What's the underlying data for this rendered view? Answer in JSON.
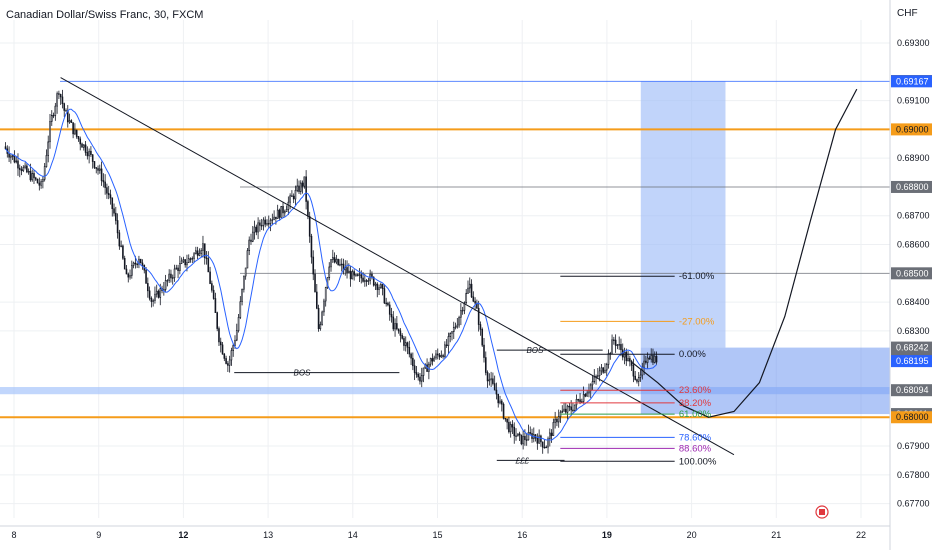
{
  "header": {
    "title": "Canadian Dollar/Swiss Franc, 30, FXCM",
    "currency": "CHF"
  },
  "colors": {
    "up": "#131722",
    "down": "#131722",
    "ma": "#2962ff",
    "orange": "#f59c1a",
    "zone": "#a6c4fb",
    "target_zone": "#9fbdf7",
    "grid": "#eef0f3",
    "tag_gray": "#6b6f77"
  },
  "chart_data": {
    "type": "candlestick",
    "symbol": "CAD/CHF",
    "timeframe": "30",
    "ylim": [
      0.6765,
      0.6938
    ],
    "y_ticks": [
      "0.69300",
      "0.69100",
      "0.68900",
      "0.68700",
      "0.68600",
      "0.68400",
      "0.68300",
      "0.67900",
      "0.67800",
      "0.67700"
    ],
    "x_ticks": [
      {
        "label": "8",
        "bold": false,
        "x": 0.0
      },
      {
        "label": "9",
        "bold": false,
        "x": 1.0
      },
      {
        "label": "12",
        "bold": true,
        "x": 2.0
      },
      {
        "label": "13",
        "bold": false,
        "x": 3.0
      },
      {
        "label": "14",
        "bold": false,
        "x": 4.0
      },
      {
        "label": "15",
        "bold": false,
        "x": 5.0
      },
      {
        "label": "16",
        "bold": false,
        "x": 6.0
      },
      {
        "label": "19",
        "bold": true,
        "x": 7.0
      },
      {
        "label": "20",
        "bold": false,
        "x": 8.0
      },
      {
        "label": "21",
        "bold": false,
        "x": 9.0
      },
      {
        "label": "22",
        "bold": false,
        "x": 10.0
      }
    ],
    "price_path": [
      [
        -0.1,
        0.6894
      ],
      [
        0.1,
        0.6887
      ],
      [
        0.25,
        0.6883
      ],
      [
        0.35,
        0.688
      ],
      [
        0.45,
        0.6902
      ],
      [
        0.55,
        0.6914
      ],
      [
        0.62,
        0.6906
      ],
      [
        0.75,
        0.6898
      ],
      [
        0.9,
        0.6892
      ],
      [
        1.05,
        0.6884
      ],
      [
        1.2,
        0.6871
      ],
      [
        1.35,
        0.6848
      ],
      [
        1.5,
        0.6856
      ],
      [
        1.65,
        0.684
      ],
      [
        1.8,
        0.6846
      ],
      [
        1.95,
        0.6852
      ],
      [
        2.1,
        0.6855
      ],
      [
        2.25,
        0.686
      ],
      [
        2.35,
        0.6845
      ],
      [
        2.45,
        0.6826
      ],
      [
        2.55,
        0.6818
      ],
      [
        2.65,
        0.683
      ],
      [
        2.8,
        0.6862
      ],
      [
        2.95,
        0.6868
      ],
      [
        3.1,
        0.687
      ],
      [
        3.2,
        0.6872
      ],
      [
        3.32,
        0.6877
      ],
      [
        3.45,
        0.6882
      ],
      [
        3.55,
        0.685
      ],
      [
        3.62,
        0.683
      ],
      [
        3.75,
        0.6855
      ],
      [
        3.9,
        0.6852
      ],
      [
        4.05,
        0.6848
      ],
      [
        4.2,
        0.6849
      ],
      [
        4.35,
        0.6845
      ],
      [
        4.5,
        0.6832
      ],
      [
        4.65,
        0.6825
      ],
      [
        4.8,
        0.6813
      ],
      [
        4.95,
        0.682
      ],
      [
        5.1,
        0.6823
      ],
      [
        5.25,
        0.6833
      ],
      [
        5.4,
        0.6846
      ],
      [
        5.5,
        0.6835
      ],
      [
        5.6,
        0.6815
      ],
      [
        5.72,
        0.6808
      ],
      [
        5.85,
        0.6797
      ],
      [
        6.0,
        0.6792
      ],
      [
        6.15,
        0.6794
      ],
      [
        6.3,
        0.679
      ],
      [
        6.45,
        0.6801
      ],
      [
        6.6,
        0.6803
      ],
      [
        6.75,
        0.6808
      ],
      [
        6.85,
        0.6812
      ],
      [
        7.0,
        0.6818
      ],
      [
        7.1,
        0.6827
      ],
      [
        7.2,
        0.6823
      ],
      [
        7.3,
        0.6818
      ],
      [
        7.4,
        0.6812
      ],
      [
        7.5,
        0.6822
      ],
      [
        7.6,
        0.682
      ]
    ],
    "horizontal_levels": [
      {
        "price": 0.69,
        "label": "0.69000",
        "color": "#f59c1a",
        "style": "solid"
      },
      {
        "price": 0.68,
        "label": "0.68000",
        "color": "#f59c1a",
        "style": "solid"
      },
      {
        "price": 0.688,
        "label": "0.68800",
        "color": "#6b6f77",
        "style": "thin"
      },
      {
        "price": 0.685,
        "label": "0.68500",
        "color": "#6b6f77",
        "style": "thin"
      },
      {
        "price": 0.69167,
        "label": "0.69167",
        "color": "#2962ff",
        "style": "thin"
      }
    ],
    "price_tags": [
      {
        "price": 0.69168,
        "label": "0.69168",
        "bg": "#6b6f77",
        "fg": "#ffffff"
      },
      {
        "price": 0.69167,
        "label": "0.69167",
        "bg": "#2962ff",
        "fg": "#ffffff"
      },
      {
        "price": 0.69,
        "label": "0.69000",
        "bg": "#f59c1a",
        "fg": "#131722"
      },
      {
        "price": 0.688,
        "label": "0.68800",
        "bg": "#6b6f77",
        "fg": "#ffffff"
      },
      {
        "price": 0.685,
        "label": "0.68500",
        "bg": "#6b6f77",
        "fg": "#ffffff"
      },
      {
        "price": 0.68242,
        "label": "0.68242",
        "sub": "08:48",
        "bg": "#6b6f77",
        "fg": "#ffffff"
      },
      {
        "price": 0.68195,
        "label": "0.68195",
        "bg": "#2962ff",
        "fg": "#ffffff"
      },
      {
        "price": 0.68094,
        "label": "0.68094",
        "bg": "#6b6f77",
        "fg": "#ffffff"
      },
      {
        "price": 0.68011,
        "label": "0.68011",
        "bg": "#6b6f77",
        "fg": "#ffffff"
      },
      {
        "price": 0.68,
        "label": "0.68000",
        "bg": "#f59c1a",
        "fg": "#131722"
      }
    ],
    "demand_zone": {
      "top": 0.68105,
      "bottom": 0.6808
    },
    "position": {
      "x_start": 7.4,
      "x_end": 8.4,
      "entry": 0.68242,
      "target": 0.69167,
      "stop": 0.68011
    },
    "trendline": {
      "x1": 0.55,
      "y1": 0.6918,
      "x2": 8.5,
      "y2": 0.6787
    },
    "fib_levels": [
      {
        "label": "-61.00%",
        "price": 0.6849,
        "color": "#131722"
      },
      {
        "label": "-27.00%",
        "price": 0.68333,
        "color": "#f59c1a"
      },
      {
        "label": "0.00%",
        "price": 0.68219,
        "color": "#131722"
      },
      {
        "label": "23.60%",
        "price": 0.68094,
        "color": "#e0383e"
      },
      {
        "label": "38.20%",
        "price": 0.6805,
        "color": "#e0383e"
      },
      {
        "label": "61.00%",
        "price": 0.68011,
        "color": "#2e9e47"
      },
      {
        "label": "78.60%",
        "price": 0.6793,
        "color": "#2962ff"
      },
      {
        "label": "88.60%",
        "price": 0.67892,
        "color": "#9c27b0"
      },
      {
        "label": "100.00%",
        "price": 0.67847,
        "color": "#131722"
      }
    ],
    "annotations": [
      {
        "text": "BOS",
        "x": 3.4,
        "price": 0.68155
      },
      {
        "text": "BOS",
        "x": 6.15,
        "price": 0.68233
      },
      {
        "text": "£££",
        "x": 6.0,
        "price": 0.6785
      }
    ],
    "projection_path": [
      [
        7.3,
        0.6819
      ],
      [
        7.6,
        0.6812
      ],
      [
        7.9,
        0.6804
      ],
      [
        8.2,
        0.68
      ],
      [
        8.5,
        0.6802
      ],
      [
        8.8,
        0.6812
      ],
      [
        9.1,
        0.6835
      ],
      [
        9.4,
        0.6868
      ],
      [
        9.7,
        0.69
      ],
      [
        9.95,
        0.6914
      ]
    ]
  }
}
